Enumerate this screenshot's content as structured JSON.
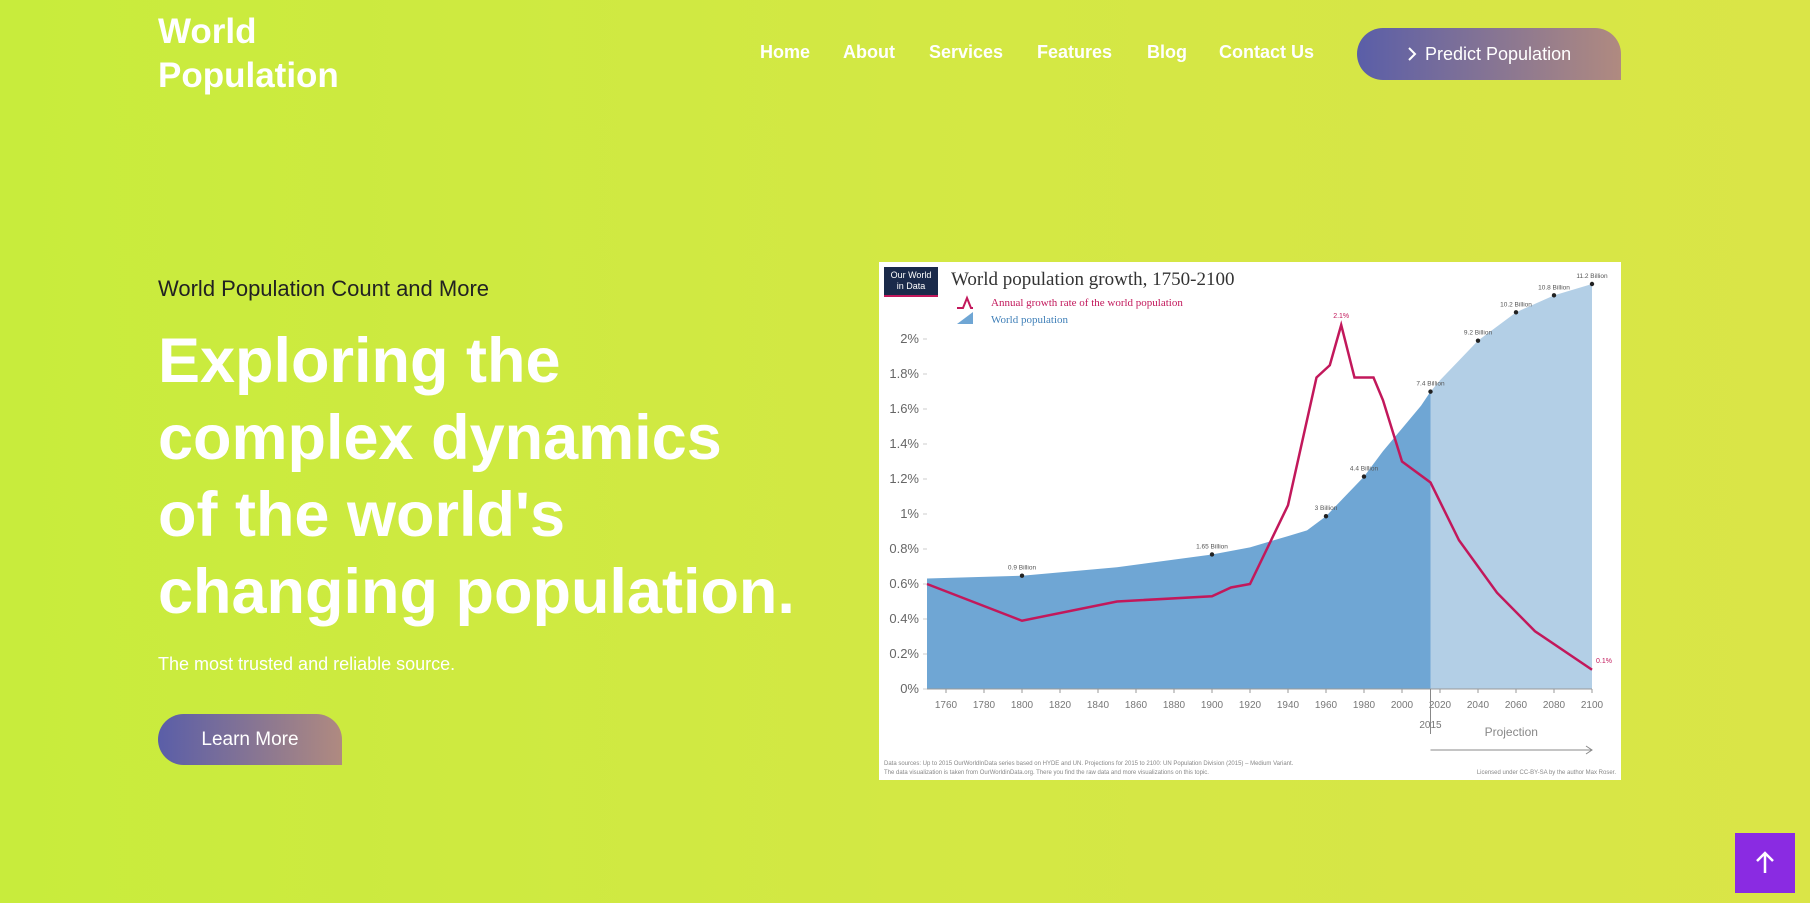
{
  "nav": {
    "logo": [
      "World",
      "Population"
    ],
    "links": [
      "Home",
      "About",
      "Services",
      "Features",
      "Blog",
      "Contact Us"
    ],
    "button": "Predict Population"
  },
  "hero": {
    "eyebrow": "World Population Count and More",
    "heading": [
      "Exploring the",
      "complex dynamics",
      "of the world's",
      "changing population."
    ],
    "subtitle": "The most trusted and reliable source.",
    "button": "Learn More"
  },
  "chart_data": {
    "type": "line",
    "logo": [
      "Our World",
      "in Data"
    ],
    "title": "World population growth, 1750-2100",
    "xlim": [
      1750,
      2100
    ],
    "xticks": [
      1760,
      1780,
      1800,
      1820,
      1840,
      1860,
      1880,
      1900,
      1920,
      1940,
      1960,
      1980,
      2000,
      2020,
      2040,
      2060,
      2080,
      2100
    ],
    "ylim": [
      0,
      2
    ],
    "yticks": [
      {
        "value": 0,
        "label": "0%"
      },
      {
        "value": 0.2,
        "label": "0.2%"
      },
      {
        "value": 0.4,
        "label": "0.4%"
      },
      {
        "value": 0.6,
        "label": "0.6%"
      },
      {
        "value": 0.8,
        "label": "0.8%"
      },
      {
        "value": 1,
        "label": "1%"
      },
      {
        "value": 1.2,
        "label": "1.2%"
      },
      {
        "value": 1.4,
        "label": "1.4%"
      },
      {
        "value": 1.6,
        "label": "1.6%"
      },
      {
        "value": 1.8,
        "label": "1.8%"
      },
      {
        "value": 2,
        "label": "2%"
      }
    ],
    "y2lim": [
      -3.1,
      11.2
    ],
    "projection_start": 2015,
    "projection_label": "Projection",
    "series": [
      {
        "name": "Annual growth rate of the world population",
        "color": "#c2185b",
        "type": "line",
        "x": [
          1750,
          1800,
          1850,
          1900,
          1910,
          1920,
          1940,
          1955,
          1962,
          1968,
          1975,
          1985,
          1990,
          2000,
          2015,
          2030,
          2050,
          2070,
          2100
        ],
        "values": [
          0.6,
          0.39,
          0.5,
          0.53,
          0.58,
          0.6,
          1.05,
          1.78,
          1.85,
          2.08,
          1.78,
          1.78,
          1.65,
          1.3,
          1.18,
          0.85,
          0.55,
          0.33,
          0.11
        ],
        "value_labels": [
          null,
          null,
          null,
          null,
          null,
          null,
          null,
          null,
          null,
          "2.1%",
          null,
          null,
          null,
          null,
          null,
          null,
          null,
          null,
          "0.1%"
        ]
      },
      {
        "name": "World population",
        "color": "#6fa6d4",
        "projection_color": "#b3cfe6",
        "type": "area",
        "axis": "y2",
        "x": [
          1750,
          1800,
          1850,
          1900,
          1920,
          1940,
          1950,
          1960,
          1970,
          1980,
          1990,
          2000,
          2010,
          2015,
          2020,
          2030,
          2040,
          2050,
          2060,
          2080,
          2100
        ],
        "values": [
          0.8,
          0.9,
          1.2,
          1.65,
          1.9,
          2.3,
          2.5,
          3.0,
          3.7,
          4.4,
          5.3,
          6.1,
          6.9,
          7.4,
          7.8,
          8.5,
          9.2,
          9.7,
          10.2,
          10.8,
          11.2
        ],
        "value_labels": [
          null,
          "0.9 Billion",
          null,
          "1.65 Billion",
          null,
          null,
          null,
          "3 Billion",
          null,
          "4.4 Billion",
          null,
          null,
          null,
          "7.4 Billion",
          null,
          null,
          "9.2 Billion",
          null,
          "10.2 Billion",
          "10.8 Billion",
          "11.2 Billion"
        ]
      }
    ],
    "sources": [
      "Data sources: Up to 2015 OurWorldInData series based on HYDE and UN. Projections for 2015 to 2100: UN Population Division (2015) – Medium Variant.",
      "The data visualization is taken from OurWorldinData.org. There you find the raw data and more visualizations on this topic."
    ],
    "license": "Licensed under CC-BY-SA by the author Max Roser."
  }
}
